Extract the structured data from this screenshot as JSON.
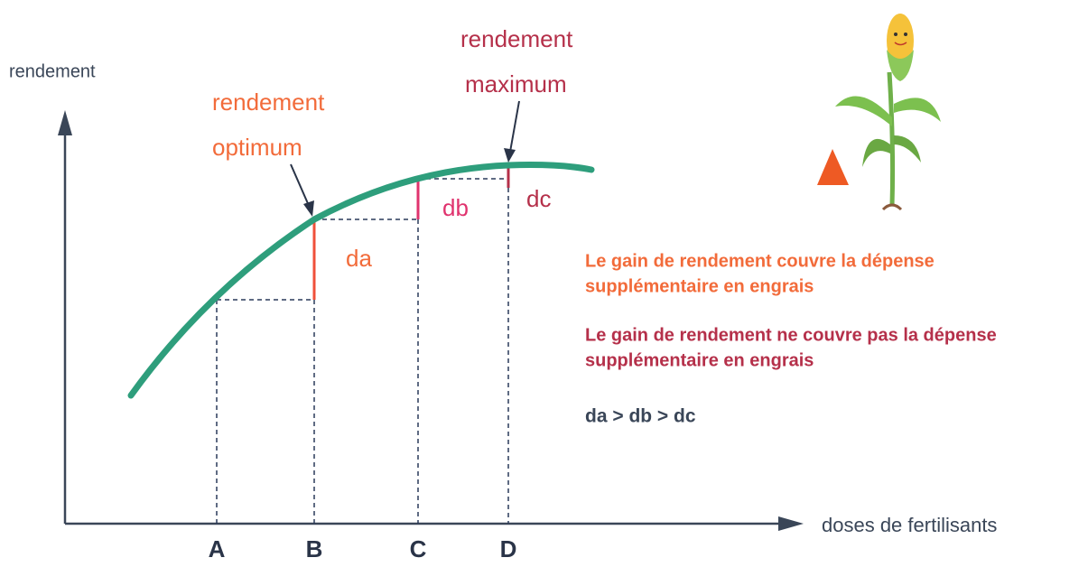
{
  "axes": {
    "y_label": "rendement",
    "x_label": "doses de fertilisants"
  },
  "points": [
    "A",
    "B",
    "C",
    "D"
  ],
  "annotations": {
    "optimum": [
      "rendement",
      "optimum"
    ],
    "maximum": [
      "rendement",
      "maximum"
    ],
    "gains": [
      "da",
      "db",
      "dc"
    ]
  },
  "legend": [
    {
      "lines": [
        "Le gain de rendement couvre la dépense",
        "supplémentaire en engrais"
      ]
    },
    {
      "lines": [
        "Le gain de rendement ne couvre pas la dépense",
        "supplémentaire en engrais"
      ]
    }
  ],
  "relation": "da > db > dc"
}
